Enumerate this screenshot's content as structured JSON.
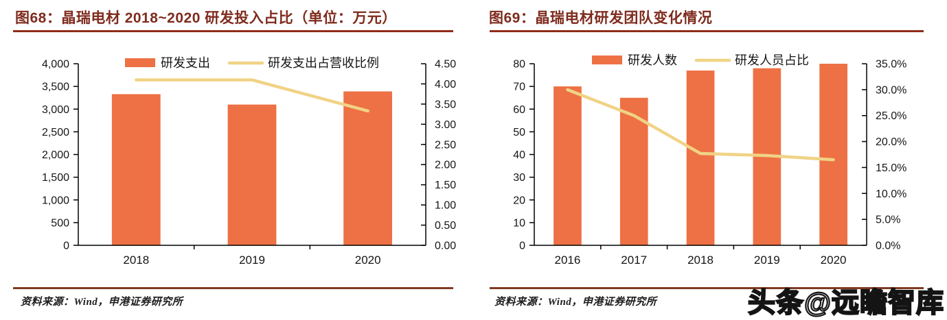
{
  "chart_data": [
    {
      "type": "bar",
      "combo": "bar+line",
      "title": "图68：晶瑞电材 2018~2020 研发投入占比（单位：万元）",
      "source": "资料来源：Wind，申港证券研究所",
      "categories": [
        "2018",
        "2019",
        "2020"
      ],
      "series": [
        {
          "name": "研发支出",
          "type": "bar",
          "axis": "left",
          "values": [
            3330,
            3100,
            3390
          ]
        },
        {
          "name": "研发支出占营收比例",
          "type": "line",
          "axis": "right",
          "values": [
            4.1,
            4.1,
            3.33
          ]
        }
      ],
      "left_axis": {
        "min": 0,
        "max": 4000,
        "step": 500,
        "format": "thousands"
      },
      "right_axis": {
        "min": 0,
        "max": 4.5,
        "step": 0.5,
        "format": "fixed2"
      },
      "legend_position": "top",
      "grid": false
    },
    {
      "type": "bar",
      "combo": "bar+line",
      "title": "图69：晶瑞电材研发团队变化情况",
      "source": "资料来源：Wind，申港证券研究所",
      "categories": [
        "2016",
        "2017",
        "2018",
        "2019",
        "2020"
      ],
      "series": [
        {
          "name": "研发人数",
          "type": "bar",
          "axis": "left",
          "values": [
            70,
            65,
            77,
            78,
            80
          ]
        },
        {
          "name": "研发人员占比",
          "type": "line",
          "axis": "right",
          "values": [
            30.0,
            25.0,
            17.7,
            17.3,
            16.5
          ]
        }
      ],
      "left_axis": {
        "min": 0,
        "max": 80,
        "step": 10,
        "format": "int"
      },
      "right_axis": {
        "min": 0,
        "max": 35,
        "step": 5,
        "format": "percent1"
      },
      "legend_position": "top",
      "grid": false
    }
  ],
  "watermark": {
    "text": "头条@远瞻智库"
  },
  "colors": {
    "bar": "#ED7144",
    "line": "#F0D385",
    "title": "#7E2B1D",
    "title_rule": "#8E2C18",
    "source_rule": "#7E3A1E",
    "axis": "#000000",
    "text": "#151515"
  }
}
